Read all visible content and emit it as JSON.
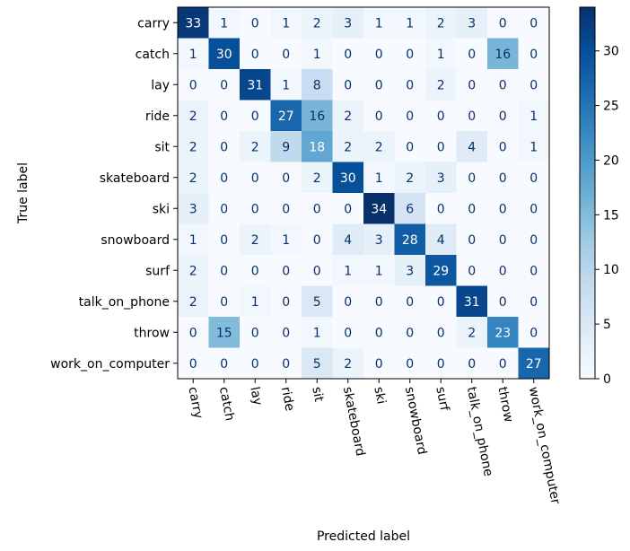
{
  "chart_data": {
    "type": "heatmap",
    "title": "",
    "xlabel": "Predicted label",
    "ylabel": "True label",
    "categories": [
      "carry",
      "catch",
      "lay",
      "ride",
      "sit",
      "skateboard",
      "ski",
      "snowboard",
      "surf",
      "talk_on_phone",
      "throw",
      "work_on_computer"
    ],
    "matrix": [
      [
        33,
        1,
        0,
        1,
        2,
        3,
        1,
        1,
        2,
        3,
        0,
        0
      ],
      [
        1,
        30,
        0,
        0,
        1,
        0,
        0,
        0,
        1,
        0,
        16,
        0
      ],
      [
        0,
        0,
        31,
        1,
        8,
        0,
        0,
        0,
        2,
        0,
        0,
        0
      ],
      [
        2,
        0,
        0,
        27,
        16,
        2,
        0,
        0,
        0,
        0,
        0,
        1
      ],
      [
        2,
        0,
        2,
        9,
        18,
        2,
        2,
        0,
        0,
        4,
        0,
        1
      ],
      [
        2,
        0,
        0,
        0,
        2,
        30,
        1,
        2,
        3,
        0,
        0,
        0
      ],
      [
        3,
        0,
        0,
        0,
        0,
        0,
        34,
        6,
        0,
        0,
        0,
        0
      ],
      [
        1,
        0,
        2,
        1,
        0,
        4,
        3,
        28,
        4,
        0,
        0,
        0
      ],
      [
        2,
        0,
        0,
        0,
        0,
        1,
        1,
        3,
        29,
        0,
        0,
        0
      ],
      [
        2,
        0,
        1,
        0,
        5,
        0,
        0,
        0,
        0,
        31,
        0,
        0
      ],
      [
        0,
        15,
        0,
        0,
        1,
        0,
        0,
        0,
        0,
        2,
        23,
        0
      ],
      [
        0,
        0,
        0,
        0,
        5,
        2,
        0,
        0,
        0,
        0,
        0,
        27
      ]
    ],
    "value_range": [
      0,
      34
    ],
    "colormap": "Blues",
    "colorbar": {
      "ticks": [
        "0",
        "5",
        "10",
        "15",
        "20",
        "25",
        "30"
      ],
      "tick_values": [
        0,
        5,
        10,
        15,
        20,
        25,
        30
      ]
    },
    "grid": false
  }
}
